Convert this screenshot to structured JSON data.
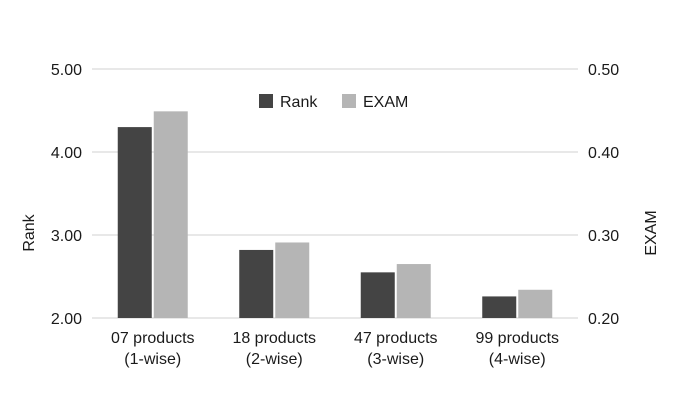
{
  "chart_data": {
    "type": "bar",
    "categories": [
      [
        "07 products",
        "(1-wise)"
      ],
      [
        "18 products",
        "(2-wise)"
      ],
      [
        "47 products",
        "(3-wise)"
      ],
      [
        "99 products",
        "(4-wise)"
      ]
    ],
    "series": [
      {
        "name": "Rank",
        "axis": "left",
        "color": "#444444",
        "values": [
          4.3,
          2.82,
          2.55,
          2.26
        ]
      },
      {
        "name": "EXAM",
        "axis": "right",
        "color": "#b5b5b5",
        "values": [
          0.449,
          0.291,
          0.265,
          0.234
        ]
      }
    ],
    "ylabel": "Rank",
    "y2label": "EXAM",
    "ylim": [
      2.0,
      5.0
    ],
    "y2lim": [
      0.2,
      0.5
    ],
    "yticks": [
      "2.00",
      "3.00",
      "4.00",
      "5.00"
    ],
    "y2ticks": [
      "0.20",
      "0.30",
      "0.40",
      "0.50"
    ],
    "grid": true,
    "legend": "top-center",
    "gridColor": "#d0d0d0"
  }
}
